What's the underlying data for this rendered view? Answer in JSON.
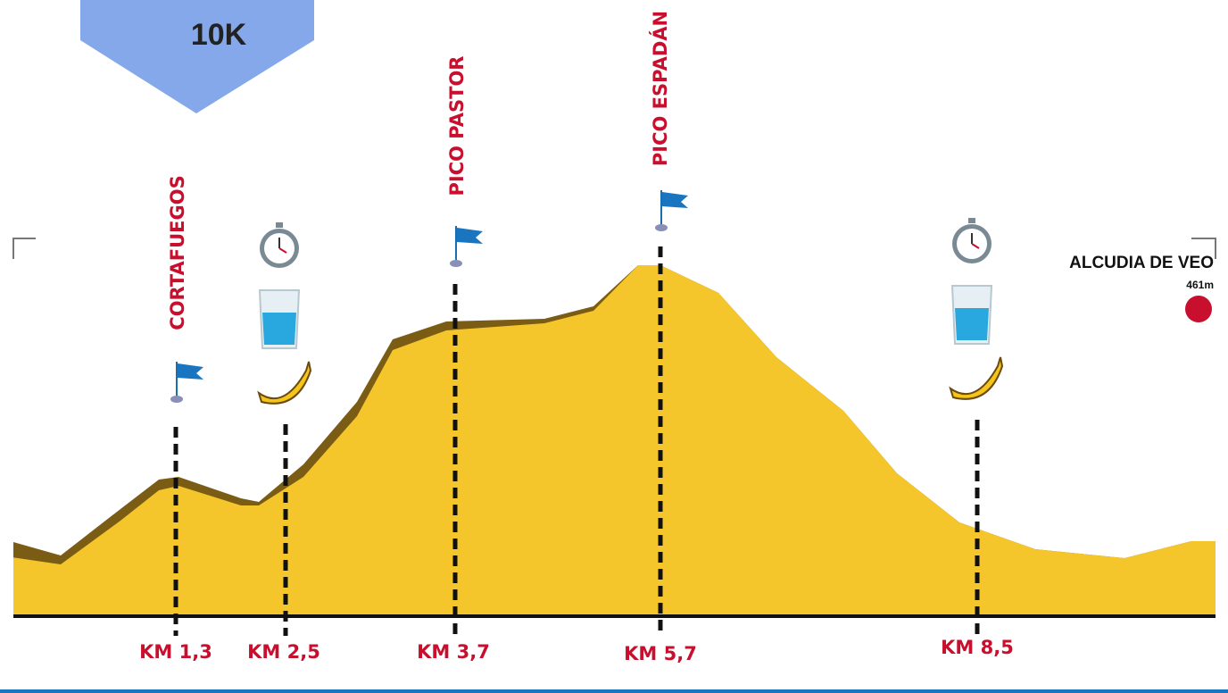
{
  "logo": {
    "text": "10K"
  },
  "waypoints": [
    {
      "name": "CORTAFUEGOS",
      "km": "KM 1,3"
    },
    {
      "km": "KM 2,5"
    },
    {
      "name": "PICO PASTOR",
      "km": "KM 3,7"
    },
    {
      "name": "PICO ESPADÁN",
      "km": "KM 5,7"
    },
    {
      "km": "KM 8,5"
    }
  ],
  "finish": {
    "name": "ALCUDIA DE VEO",
    "elevation": "461m"
  }
}
